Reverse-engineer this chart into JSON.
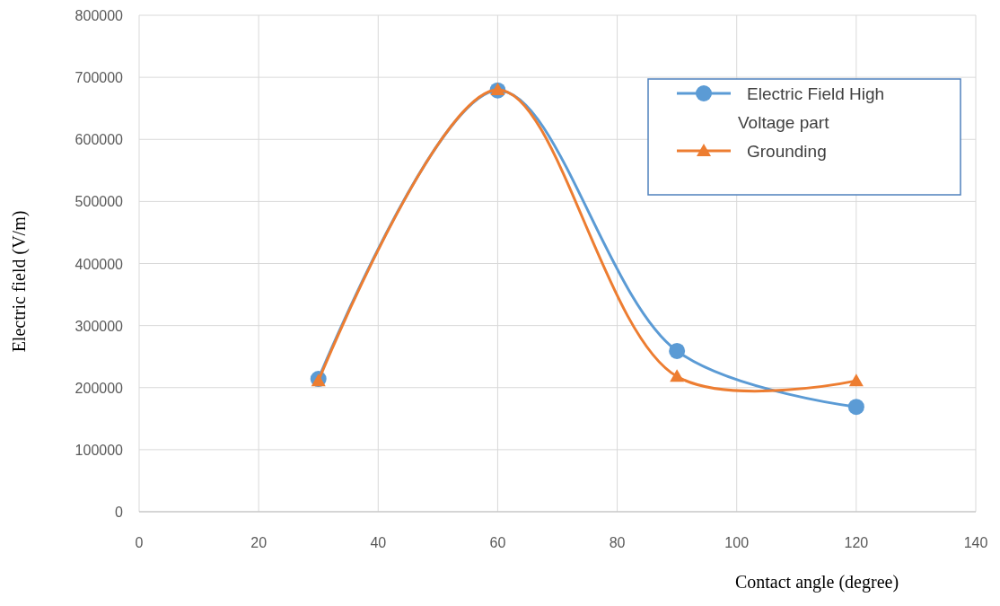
{
  "chart_data": {
    "type": "line",
    "xlabel": "Contact angle (degree)",
    "ylabel": "Electric field (V/m)",
    "x": [
      30,
      60,
      90,
      120
    ],
    "series": [
      {
        "name": "Electric Field  High Voltage part",
        "color": "#5b9bd5",
        "marker": "circle",
        "values": [
          214000,
          679000,
          259000,
          169000
        ]
      },
      {
        "name": "Grounding",
        "color": "#ed7d31",
        "marker": "triangle",
        "values": [
          211000,
          680000,
          218000,
          211000
        ]
      }
    ],
    "xlim": [
      0,
      140
    ],
    "xticks": [
      0,
      20,
      40,
      60,
      80,
      100,
      120,
      140
    ],
    "ylim": [
      0,
      800000
    ],
    "yticks": [
      0,
      100000,
      200000,
      300000,
      400000,
      500000,
      600000,
      700000,
      800000
    ],
    "grid": true,
    "legend": "top right"
  }
}
